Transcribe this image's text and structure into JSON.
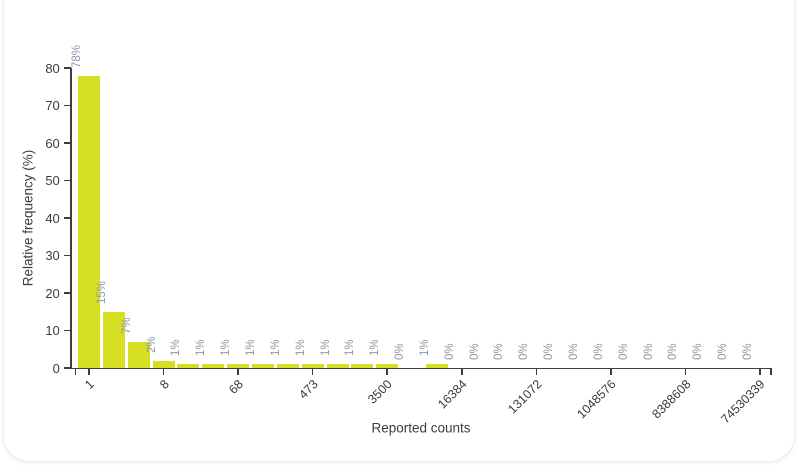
{
  "chart_data": {
    "type": "bar",
    "title": "",
    "xlabel": "Reported counts",
    "ylabel": "Relative frequency (%)",
    "ylim": [
      0,
      80
    ],
    "grid": false,
    "legend_position": "none",
    "bar_color": "#d7df23",
    "value_label_color": "#8f97a8",
    "axis_color": "#3d3d3d",
    "y_ticks": [
      0,
      10,
      20,
      30,
      40,
      50,
      60,
      70,
      80
    ],
    "values": [
      78,
      15,
      7,
      2,
      1,
      1,
      1,
      1,
      1,
      1,
      1,
      1,
      1,
      0,
      1,
      0,
      0,
      0,
      0,
      0,
      0,
      0,
      0,
      0,
      0,
      0,
      0,
      0
    ],
    "bar_value_labels": [
      "78%",
      "15%",
      "7%",
      "2%",
      "1%",
      "1%",
      "1%",
      "1%",
      "1%",
      "1%",
      "1%",
      "1%",
      "1%",
      "0%",
      "1%",
      "0%",
      "0%",
      "0%",
      "0%",
      "0%",
      "0%",
      "0%",
      "0%",
      "0%",
      "0%",
      "0%",
      "0%",
      "0%"
    ],
    "x_ticks": [
      {
        "bar_index": 0,
        "label": "1"
      },
      {
        "bar_index": 3,
        "label": "8"
      },
      {
        "bar_index": 6,
        "label": "68"
      },
      {
        "bar_index": 9,
        "label": "473"
      },
      {
        "bar_index": 12,
        "label": "3500"
      },
      {
        "bar_index": 15,
        "label": "16384"
      },
      {
        "bar_index": 18,
        "label": "131072"
      },
      {
        "bar_index": 21,
        "label": "1048576"
      },
      {
        "bar_index": 24,
        "label": "8388608"
      },
      {
        "bar_index": 27,
        "label": "74530339"
      }
    ]
  }
}
